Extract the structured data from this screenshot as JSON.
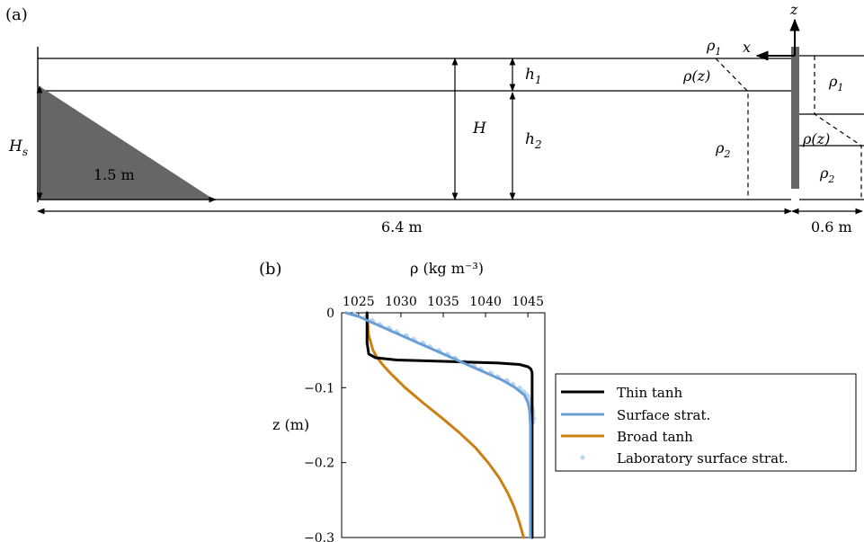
{
  "panel_a": {
    "label": "(a)",
    "labels": {
      "rho1_left": "ρ",
      "rho1_left_sub": "1",
      "rho_z_left": "ρ(z)",
      "rho2_left": "ρ",
      "rho2_left_sub": "2",
      "x_axis": "x",
      "z_axis": "z",
      "h1": "h",
      "h1_sub": "1",
      "h2": "h",
      "h2_sub": "2",
      "H": "H",
      "Hs": "H",
      "Hs_sub": "s",
      "slope_len": "1.5 m",
      "tank_len": "6.4 m",
      "reservoir_len": "0.6 m",
      "rho1_right": "ρ",
      "rho1_right_sub": "1",
      "rho_z_right": "ρ(z)",
      "rho2_right": "ρ",
      "rho2_right_sub": "2"
    }
  },
  "panel_b": {
    "label": "(b)",
    "chart_data": {
      "type": "line",
      "xlabel": "ρ (kg m⁻³)",
      "ylabel": "z (m)",
      "xlim": [
        1023,
        1047
      ],
      "ylim": [
        -0.3,
        0
      ],
      "xticks": [
        "1025",
        "1030",
        "1035",
        "1040",
        "1045"
      ],
      "xtick_values": [
        1025,
        1030,
        1035,
        1040,
        1045
      ],
      "yticks": [
        "0",
        "−0.1",
        "−0.2",
        "−0.3"
      ],
      "ytick_values": [
        0,
        -0.1,
        -0.2,
        -0.3
      ],
      "x_axis_position": "top",
      "legend_position": "right",
      "series": [
        {
          "name": "Thin tanh",
          "color": "#000000",
          "style": "line",
          "z": [
            0,
            -0.04,
            -0.055,
            -0.06,
            -0.063,
            -0.065,
            -0.067,
            -0.069,
            -0.072,
            -0.075,
            -0.08,
            -0.1,
            -0.3
          ],
          "rho": [
            1026.0,
            1026.0,
            1026.2,
            1027.0,
            1029.5,
            1035.5,
            1041.5,
            1044.0,
            1045.0,
            1045.35,
            1045.5,
            1045.5,
            1045.5
          ]
        },
        {
          "name": "Surface strat.",
          "color": "#6a9fd6",
          "style": "line",
          "z": [
            0,
            -0.005,
            -0.01,
            -0.015,
            -0.02,
            -0.025,
            -0.03,
            -0.04,
            -0.05,
            -0.06,
            -0.07,
            -0.08,
            -0.09,
            -0.1,
            -0.11,
            -0.12,
            -0.13,
            -0.15,
            -0.2,
            -0.3
          ],
          "rho": [
            1023.5,
            1025.0,
            1026.0,
            1027.0,
            1028.0,
            1029.0,
            1030.0,
            1032.0,
            1034.0,
            1036.0,
            1038.0,
            1040.0,
            1042.0,
            1043.5,
            1044.6,
            1045.0,
            1045.2,
            1045.3,
            1045.3,
            1045.3
          ]
        },
        {
          "name": "Broad tanh",
          "color": "#cc8012",
          "style": "line",
          "z": [
            0,
            -0.03,
            -0.05,
            -0.06,
            -0.07,
            -0.08,
            -0.1,
            -0.12,
            -0.14,
            -0.16,
            -0.18,
            -0.2,
            -0.22,
            -0.24,
            -0.26,
            -0.28,
            -0.3
          ],
          "rho": [
            1026.0,
            1026.2,
            1026.7,
            1027.2,
            1027.9,
            1028.7,
            1030.5,
            1032.6,
            1034.8,
            1036.9,
            1038.8,
            1040.3,
            1041.6,
            1042.6,
            1043.4,
            1044.0,
            1044.5
          ]
        },
        {
          "name": "Laboratory surface strat.",
          "color": "#b9d4ef",
          "style": "scatter",
          "z": [
            -0.002,
            -0.006,
            -0.01,
            -0.015,
            -0.02,
            -0.025,
            -0.03,
            -0.035,
            -0.04,
            -0.045,
            -0.05,
            -0.055,
            -0.06,
            -0.065,
            -0.07,
            -0.075,
            -0.08,
            -0.085,
            -0.09,
            -0.095,
            -0.1,
            -0.105,
            -0.11,
            -0.115,
            -0.12,
            -0.125,
            -0.13,
            -0.135,
            -0.14,
            -0.145
          ],
          "rho": [
            1024.5,
            1025.8,
            1026.6,
            1027.5,
            1028.6,
            1029.5,
            1030.6,
            1031.5,
            1032.6,
            1033.4,
            1034.5,
            1035.5,
            1036.4,
            1037.5,
            1038.6,
            1039.4,
            1040.6,
            1041.4,
            1042.5,
            1043.2,
            1044.0,
            1044.5,
            1044.9,
            1045.1,
            1045.3,
            1045.4,
            1045.5,
            1045.5,
            1045.6,
            1045.5
          ]
        }
      ]
    }
  }
}
